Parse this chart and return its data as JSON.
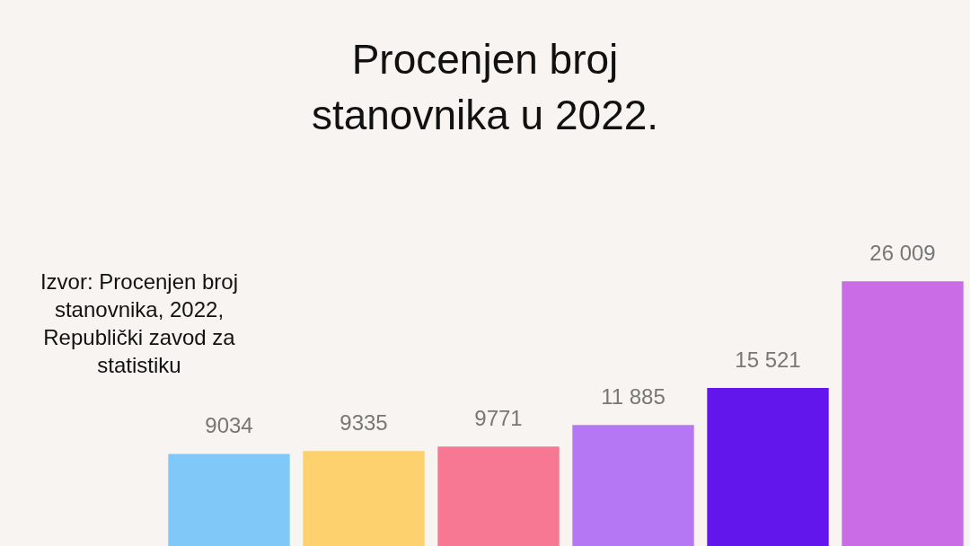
{
  "chart_data": {
    "type": "bar",
    "title": "Procenjen broj stanovnika u 2022.",
    "annotations": [
      "Izvor: Procenjen broj stanovnika, 2022, Republički zavod za statistiku"
    ],
    "categories": [
      null,
      null,
      null,
      null,
      null,
      null
    ],
    "values": [
      9034,
      9335,
      9771,
      11885,
      15521,
      26009
    ],
    "colors": [
      "#7fc8f8",
      "#fdd26e",
      "#f67893",
      "#b577f3",
      "#6216eb",
      "#c96ce6"
    ],
    "value_labels": [
      "9034",
      "9335",
      "9771",
      "11 885",
      "15 521",
      "26 009"
    ]
  }
}
